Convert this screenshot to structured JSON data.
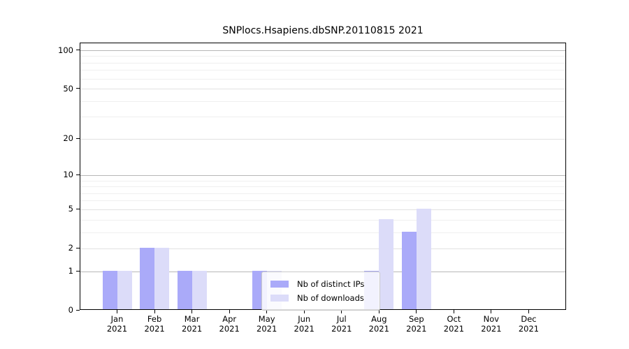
{
  "title": "SNPlocs.Hsapiens.dbSNP.20110815 2021",
  "chart_data": {
    "type": "bar",
    "title": "SNPlocs.Hsapiens.dbSNP.20110815 2021",
    "categories": [
      "Jan",
      "Feb",
      "Mar",
      "Apr",
      "May",
      "Jun",
      "Jul",
      "Aug",
      "Sep",
      "Oct",
      "Nov",
      "Dec"
    ],
    "year_label": "2021",
    "series": [
      {
        "name": "Nb of distinct IPs",
        "color": "#aaaaf9",
        "values": [
          1,
          2,
          1,
          0,
          1,
          0,
          0,
          1,
          3,
          0,
          0,
          0
        ]
      },
      {
        "name": "Nb of downloads",
        "color": "#dcdcf9",
        "values": [
          1,
          2,
          1,
          0,
          1,
          0,
          0,
          4,
          5,
          0,
          0,
          0
        ]
      }
    ],
    "xlabel": "",
    "ylabel": "",
    "y_scale": "log1p",
    "ylim": [
      0,
      114
    ],
    "y_ticks": [
      0,
      1,
      2,
      5,
      10,
      20,
      50,
      100
    ],
    "y_decade_ticks": [
      1,
      10,
      100
    ],
    "y_minor_gridlines": [
      3,
      4,
      6,
      7,
      8,
      9,
      30,
      40,
      60,
      70,
      80,
      90
    ],
    "grid": "horizontal",
    "legend_position": "bottom-center-inside"
  }
}
